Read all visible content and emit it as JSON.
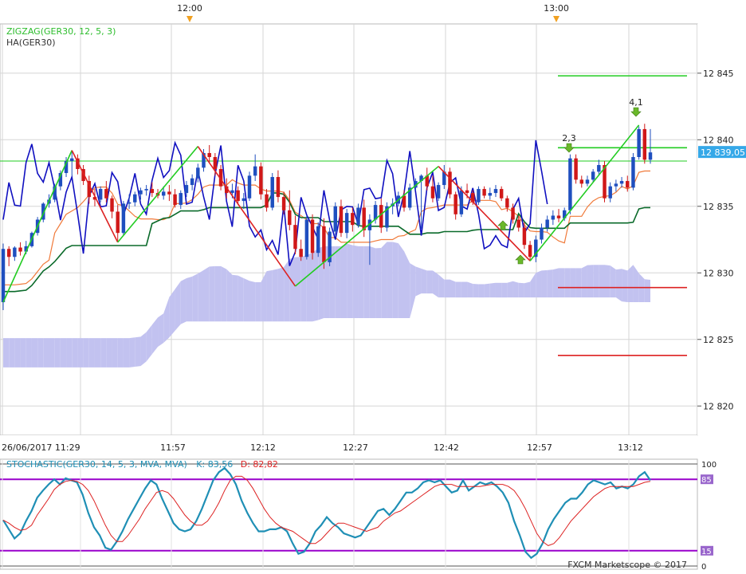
{
  "top_time_labels": [
    "12:00",
    "13:00"
  ],
  "main_panel": {
    "indicator_labels": [
      {
        "text": "ZIGZAG(GER30, 12, 5, 3)",
        "color": "#2dbd2d"
      },
      {
        "text": "HA(GER30)",
        "color": "#333333"
      }
    ],
    "price_ticks": [
      "12 845",
      "12 840",
      "12 835",
      "12 830",
      "12 825",
      "12 820"
    ],
    "current_price_badge": "12 839,05",
    "zigzag_labels": [
      "2,3",
      "4,1"
    ],
    "x_ticks": [
      "26/06/2017 11:29",
      "11:57",
      "12:12",
      "12:27",
      "12:42",
      "12:57",
      "13:12"
    ]
  },
  "stochastic_panel": {
    "name": "STOCHASTIC(GER30, 14, 5, 3, MVA, MVA)",
    "k_label": "K: 83,56",
    "d_label": "D: 82,82",
    "levels": [
      "100",
      "85",
      "15",
      "0"
    ]
  },
  "watermark": "FXCM Marketscope © 2017",
  "colors": {
    "bull_candle": "#1f4fbf",
    "bear_candle": "#d01818",
    "zigzag": "#22cc22",
    "zigzag_down": "#dd2222",
    "kijun": "#0a6a2a",
    "tenkan": "#f07a3a",
    "chikou": "#1010c0",
    "cloud_bull": "#c2c2f0",
    "cloud_bear": "#f4c8c8",
    "k_line": "#1f8fb5",
    "d_line": "#dd2222",
    "stoch_level": "#9900cc",
    "badge": "#35a8e8"
  },
  "chart_data": [
    {
      "type": "candlestick",
      "symbol": "GER30",
      "x_ticks": [
        "26/06/2017 11:29",
        "11:57",
        "12:12",
        "12:27",
        "12:42",
        "12:57",
        "13:12"
      ],
      "y_ticks": [
        12845,
        12840,
        12835,
        12830,
        12825,
        12820
      ],
      "ylim": [
        12817.8,
        12848.7
      ],
      "current_price": 12839.05,
      "candles": [
        [
          12827.8,
          12832.2,
          12827.2,
          12831.8
        ],
        [
          12831.8,
          12832.0,
          12830.5,
          12831.2
        ],
        [
          12831.2,
          12832.0,
          12830.9,
          12831.9
        ],
        [
          12831.9,
          12832.3,
          12831.3,
          12831.6
        ],
        [
          12831.6,
          12832.4,
          12831.4,
          12832.0
        ],
        [
          12832.0,
          12833.1,
          12831.9,
          12833.0
        ],
        [
          12833.0,
          12834.2,
          12832.8,
          12834.0
        ],
        [
          12834.0,
          12835.3,
          12833.8,
          12835.2
        ],
        [
          12835.2,
          12835.9,
          12834.9,
          12835.5
        ],
        [
          12835.5,
          12836.7,
          12835.3,
          12836.5
        ],
        [
          12836.5,
          12837.7,
          12836.2,
          12837.5
        ],
        [
          12837.5,
          12838.7,
          12837.2,
          12838.4
        ],
        [
          12838.4,
          12839.1,
          12837.3,
          12838.6
        ],
        [
          12838.6,
          12838.9,
          12837.4,
          12837.8
        ],
        [
          12837.8,
          12838.1,
          12836.6,
          12836.9
        ],
        [
          12836.9,
          12837.3,
          12835.2,
          12835.7
        ],
        [
          12835.7,
          12836.3,
          12835.0,
          12835.5
        ],
        [
          12835.5,
          12836.5,
          12835.3,
          12836.3
        ],
        [
          12836.3,
          12836.9,
          12835.3,
          12835.6
        ],
        [
          12835.6,
          12835.8,
          12834.1,
          12834.6
        ],
        [
          12834.6,
          12835.1,
          12832.4,
          12833.0
        ],
        [
          12833.0,
          12835.4,
          12832.8,
          12835.2
        ],
        [
          12835.2,
          12835.9,
          12834.8,
          12835.3
        ],
        [
          12835.3,
          12836.1,
          12835.0,
          12835.9
        ],
        [
          12835.9,
          12836.4,
          12835.5,
          12836.2
        ],
        [
          12836.2,
          12836.6,
          12835.8,
          12836.3
        ],
        [
          12836.3,
          12836.8,
          12835.7,
          12836.0
        ],
        [
          12836.0,
          12836.3,
          12835.6,
          12835.8
        ],
        [
          12835.8,
          12836.5,
          12835.5,
          12836.1
        ],
        [
          12836.1,
          12836.6,
          12835.4,
          12835.9
        ],
        [
          12835.9,
          12836.3,
          12834.9,
          12835.1
        ],
        [
          12835.1,
          12836.2,
          12834.8,
          12836.0
        ],
        [
          12836.0,
          12836.9,
          12835.7,
          12836.6
        ],
        [
          12836.6,
          12837.4,
          12836.2,
          12837.1
        ],
        [
          12837.1,
          12838.2,
          12836.8,
          12837.9
        ],
        [
          12837.9,
          12839.3,
          12837.6,
          12839.0
        ],
        [
          12839.0,
          12839.6,
          12838.3,
          12838.7
        ],
        [
          12838.7,
          12839.0,
          12837.3,
          12837.8
        ],
        [
          12837.8,
          12838.1,
          12836.2,
          12836.5
        ],
        [
          12836.5,
          12837.1,
          12835.6,
          12836.0
        ],
        [
          12836.0,
          12836.7,
          12835.6,
          12836.2
        ],
        [
          12836.2,
          12836.5,
          12835.1,
          12835.4
        ],
        [
          12835.4,
          12836.0,
          12834.8,
          12835.6
        ],
        [
          12835.6,
          12837.6,
          12835.4,
          12837.3
        ],
        [
          12837.3,
          12838.9,
          12836.9,
          12838.0
        ],
        [
          12838.0,
          12838.3,
          12835.5,
          12835.9
        ],
        [
          12835.9,
          12836.3,
          12834.6,
          12834.9
        ],
        [
          12834.9,
          12837.5,
          12834.7,
          12837.2
        ],
        [
          12837.2,
          12837.7,
          12835.3,
          12835.7
        ],
        [
          12835.7,
          12836.1,
          12834.4,
          12834.7
        ],
        [
          12834.7,
          12836.2,
          12833.2,
          12833.6
        ],
        [
          12833.6,
          12834.3,
          12831.4,
          12831.8
        ],
        [
          12831.8,
          12832.5,
          12830.9,
          12831.2
        ],
        [
          12831.2,
          12834.3,
          12831.0,
          12834.0
        ],
        [
          12834.0,
          12834.4,
          12831.0,
          12831.5
        ],
        [
          12831.5,
          12833.8,
          12831.2,
          12833.5
        ],
        [
          12833.5,
          12834.1,
          12830.3,
          12830.8
        ],
        [
          12830.8,
          12833.4,
          12830.5,
          12833.1
        ],
        [
          12833.1,
          12835.3,
          12832.8,
          12835.0
        ],
        [
          12835.0,
          12835.5,
          12832.7,
          12833.0
        ],
        [
          12833.0,
          12834.8,
          12832.6,
          12834.5
        ],
        [
          12834.5,
          12834.9,
          12833.1,
          12833.6
        ],
        [
          12833.6,
          12835.2,
          12833.4,
          12834.9
        ],
        [
          12834.9,
          12835.5,
          12832.7,
          12833.2
        ],
        [
          12833.2,
          12834.4,
          12830.6,
          12834.0
        ],
        [
          12834.0,
          12835.4,
          12833.7,
          12835.1
        ],
        [
          12835.1,
          12835.6,
          12833.0,
          12833.4
        ],
        [
          12833.4,
          12835.3,
          12833.1,
          12835.0
        ],
        [
          12835.0,
          12835.6,
          12834.4,
          12835.2
        ],
        [
          12835.2,
          12836.1,
          12835.0,
          12835.8
        ],
        [
          12835.8,
          12836.2,
          12834.6,
          12834.9
        ],
        [
          12834.9,
          12836.7,
          12834.7,
          12836.4
        ],
        [
          12836.4,
          12837.1,
          12836.2,
          12836.9
        ],
        [
          12836.9,
          12837.4,
          12833.3,
          12837.3
        ],
        [
          12837.3,
          12837.9,
          12836.2,
          12836.5
        ],
        [
          12836.5,
          12837.3,
          12835.3,
          12835.6
        ],
        [
          12835.6,
          12836.8,
          12835.4,
          12836.6
        ],
        [
          12836.6,
          12838.1,
          12836.3,
          12837.6
        ],
        [
          12837.6,
          12837.9,
          12835.6,
          12835.9
        ],
        [
          12835.9,
          12836.1,
          12834.0,
          12834.4
        ],
        [
          12834.4,
          12836.5,
          12834.2,
          12836.2
        ],
        [
          12836.2,
          12836.7,
          12835.6,
          12836.0
        ],
        [
          12836.0,
          12836.2,
          12835.1,
          12835.3
        ],
        [
          12835.3,
          12836.5,
          12835.1,
          12836.3
        ],
        [
          12836.3,
          12836.5,
          12835.6,
          12835.8
        ],
        [
          12835.8,
          12836.4,
          12835.5,
          12836.0
        ],
        [
          12836.0,
          12836.6,
          12835.7,
          12836.3
        ],
        [
          12836.3,
          12836.5,
          12835.4,
          12835.6
        ],
        [
          12835.6,
          12835.8,
          12834.6,
          12834.9
        ],
        [
          12834.9,
          12835.2,
          12833.7,
          12834.0
        ],
        [
          12834.0,
          12834.3,
          12833.1,
          12833.4
        ],
        [
          12833.4,
          12833.8,
          12831.8,
          12832.1
        ],
        [
          12832.1,
          12832.4,
          12830.9,
          12831.2
        ],
        [
          12831.2,
          12832.8,
          12830.8,
          12832.5
        ],
        [
          12832.5,
          12833.7,
          12832.2,
          12833.4
        ],
        [
          12833.4,
          12834.3,
          12833.1,
          12834.0
        ],
        [
          12834.0,
          12834.7,
          12833.6,
          12834.3
        ],
        [
          12834.3,
          12834.8,
          12833.8,
          12834.1
        ],
        [
          12834.1,
          12834.9,
          12833.9,
          12834.7
        ],
        [
          12834.7,
          12838.9,
          12834.4,
          12838.6
        ],
        [
          12838.6,
          12838.9,
          12836.7,
          12837.0
        ],
        [
          12837.0,
          12837.3,
          12836.4,
          12836.7
        ],
        [
          12836.7,
          12837.3,
          12836.5,
          12837.0
        ],
        [
          12837.0,
          12837.8,
          12836.8,
          12837.6
        ],
        [
          12837.6,
          12838.5,
          12837.3,
          12838.1
        ],
        [
          12838.1,
          12838.4,
          12835.3,
          12835.6
        ],
        [
          12835.6,
          12836.8,
          12835.3,
          12836.5
        ],
        [
          12836.5,
          12837.0,
          12836.1,
          12836.7
        ],
        [
          12836.7,
          12837.2,
          12836.4,
          12836.9
        ],
        [
          12836.9,
          12837.3,
          12836.1,
          12836.4
        ],
        [
          12836.4,
          12839.0,
          12836.2,
          12838.7
        ],
        [
          12838.7,
          12841.0,
          12838.5,
          12840.8
        ],
        [
          12840.8,
          12841.2,
          12838.2,
          12838.5
        ],
        [
          12838.5,
          12840.8,
          12838.2,
          12839.05
        ]
      ],
      "zigzag": {
        "points": [
          [
            0,
            12827.8
          ],
          [
            12,
            12839.2
          ],
          [
            20,
            12832.3
          ],
          [
            34,
            12839.5
          ],
          [
            51,
            12829.0
          ],
          [
            76,
            12838.0
          ],
          [
            92,
            12830.9
          ],
          [
            111,
            12841.1
          ]
        ],
        "labels": [
          "2,3",
          "4,1"
        ]
      },
      "horizontal_levels": [
        {
          "value": 12838.4,
          "color": "#22cc22"
        },
        {
          "value": 12844.8,
          "color": "#22cc22"
        },
        {
          "value": 12839.4,
          "color": "#22cc22"
        },
        {
          "value": 12828.9,
          "color": "#dd2222"
        },
        {
          "value": 12823.8,
          "color": "#dd2222"
        }
      ]
    },
    {
      "type": "line",
      "name": "STOCHASTIC(GER30, 14, 5, 3, MVA, MVA)",
      "ylim": [
        0,
        100
      ],
      "levels": [
        85,
        15
      ],
      "series": [
        {
          "name": "K",
          "last": 83.56,
          "values": [
            45,
            36,
            27,
            32,
            44,
            54,
            67,
            74,
            80,
            85,
            80,
            86,
            84,
            82,
            70,
            52,
            38,
            30,
            18,
            16,
            24,
            34,
            46,
            56,
            66,
            76,
            84,
            80,
            66,
            54,
            42,
            36,
            34,
            36,
            44,
            56,
            70,
            84,
            92,
            96,
            90,
            80,
            64,
            52,
            42,
            34,
            34,
            36,
            36,
            38,
            34,
            22,
            12,
            14,
            22,
            34,
            40,
            48,
            42,
            38,
            32,
            30,
            28,
            30,
            38,
            46,
            54,
            56,
            50,
            56,
            64,
            72,
            72,
            76,
            82,
            84,
            82,
            84,
            78,
            72,
            74,
            84,
            74,
            78,
            82,
            80,
            82,
            78,
            72,
            62,
            44,
            30,
            14,
            8,
            12,
            22,
            36,
            46,
            54,
            62,
            66,
            66,
            72,
            80,
            84,
            82,
            80,
            82,
            76,
            78,
            76,
            80,
            88,
            92,
            84
          ]
        },
        {
          "name": "D",
          "last": 82.82,
          "values": [
            45,
            42,
            38,
            35,
            36,
            40,
            50,
            58,
            66,
            75,
            80,
            83,
            84,
            83,
            80,
            74,
            64,
            52,
            40,
            30,
            24,
            24,
            30,
            38,
            46,
            56,
            64,
            72,
            74,
            72,
            66,
            58,
            50,
            44,
            40,
            40,
            44,
            52,
            62,
            74,
            84,
            88,
            88,
            84,
            76,
            66,
            56,
            48,
            42,
            38,
            36,
            34,
            30,
            26,
            22,
            22,
            26,
            32,
            38,
            42,
            42,
            40,
            38,
            36,
            34,
            36,
            38,
            44,
            48,
            52,
            54,
            58,
            62,
            66,
            70,
            74,
            78,
            80,
            80,
            80,
            78,
            78,
            78,
            78,
            78,
            79,
            80,
            80,
            80,
            78,
            74,
            66,
            56,
            44,
            32,
            24,
            20,
            22,
            28,
            36,
            44,
            50,
            56,
            62,
            68,
            72,
            76,
            78,
            78,
            78,
            78,
            78,
            80,
            82,
            83
          ]
        }
      ]
    }
  ]
}
